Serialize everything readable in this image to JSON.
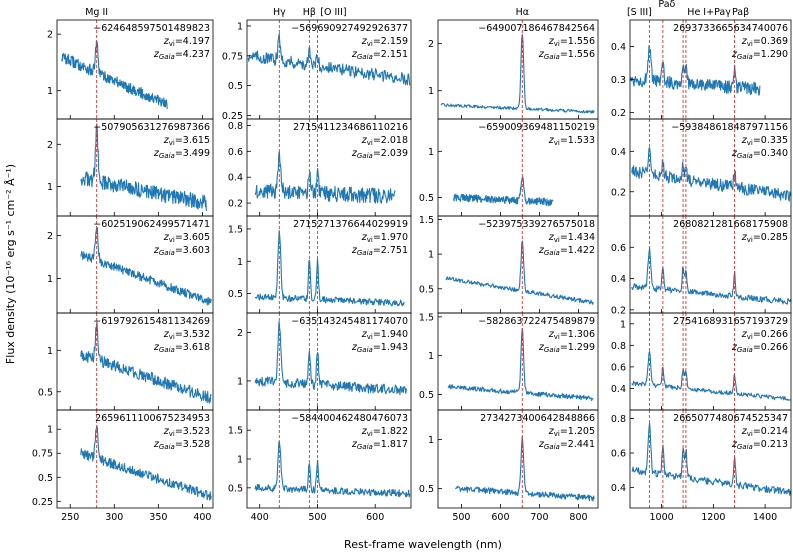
{
  "chart_data": {
    "type": "line",
    "xlabel": "Rest-frame wavelength (nm)",
    "ylabel": "Flux density (10⁻¹⁶ erg s⁻¹ cm⁻² Å⁻¹)",
    "series_color": "#1f77b4",
    "line_color": "#e03030",
    "columns": [
      {
        "xlim": [
          235,
          412
        ],
        "xticks": [
          250,
          300,
          350,
          400
        ],
        "lines": [
          {
            "name": "Mg II",
            "x": 280
          }
        ],
        "panels": [
          {
            "id": "−624648597501489823",
            "z_vi": "4.197",
            "z_gaia": "4.237",
            "ylim": [
              0.5,
              2.25
            ],
            "yticks": [
              1,
              2
            ],
            "x_range": [
              240,
              360
            ],
            "start": 1.6,
            "end": 0.75,
            "peak": 0.5,
            "noise": 0.1
          },
          {
            "id": "−507905631276987366",
            "z_vi": "3.615",
            "z_gaia": "3.499",
            "ylim": [
              0.3,
              2.6
            ],
            "yticks": [
              1,
              2
            ],
            "x_range": [
              262,
              405
            ],
            "start": 1.2,
            "end": 0.6,
            "peak": 1.2,
            "noise": 0.18
          },
          {
            "id": "−602519062499571471",
            "z_vi": "3.605",
            "z_gaia": "3.603",
            "ylim": [
              0.2,
              2.45
            ],
            "yticks": [
              1,
              2
            ],
            "x_range": [
              262,
              410
            ],
            "start": 1.55,
            "end": 0.45,
            "peak": 0.8,
            "noise": 0.1
          },
          {
            "id": "−619792615481134269",
            "z_vi": "3.532",
            "z_gaia": "3.618",
            "ylim": [
              0.28,
              1.45
            ],
            "yticks": [
              0.5,
              1.0
            ],
            "x_range": [
              262,
              410
            ],
            "start": 0.95,
            "end": 0.42,
            "peak": 0.4,
            "noise": 0.07
          },
          {
            "id": "265961110067523495​3",
            "z_vi": "3.523",
            "z_gaia": "3.528",
            "ylim": [
              0.18,
              1.2
            ],
            "yticks": [
              0.25,
              0.5,
              0.75,
              1.0
            ],
            "x_range": [
              262,
              410
            ],
            "start": 0.75,
            "end": 0.3,
            "peak": 0.35,
            "noise": 0.05
          }
        ]
      },
      {
        "xlim": [
          378,
          662
        ],
        "xticks": [
          400,
          500,
          600
        ],
        "lines": [
          {
            "name": "Hγ",
            "x": 434
          },
          {
            "name": "Hβ",
            "x": 486
          },
          {
            "name": "[O III]",
            "x": 500
          }
        ],
        "panels": [
          {
            "id": "−569690927492926377",
            "z_vi": "2.159",
            "z_gaia": "2.151",
            "ylim": [
              0.22,
              1.05
            ],
            "yticks": [
              0.25,
              0.5,
              0.75,
              1.0
            ],
            "x_range": [
              380,
              660
            ],
            "start": 0.75,
            "end": 0.55,
            "peak": 0.18,
            "noise": 0.05
          },
          {
            "id": "271541123468611021​6",
            "z_vi": "2.018",
            "z_gaia": "2.039",
            "ylim": [
              0.1,
              0.85
            ],
            "yticks": [
              0.2,
              0.4,
              0.6,
              0.8
            ],
            "x_range": [
              392,
              635
            ],
            "start": 0.3,
            "end": 0.25,
            "peak": 0.25,
            "noise": 0.06
          },
          {
            "id": "271527137664402991​9",
            "z_vi": "1.970",
            "z_gaia": "2.751",
            "ylim": [
              0.2,
              1.7
            ],
            "yticks": [
              0.5,
              1.0,
              1.5
            ],
            "x_range": [
              392,
              650
            ],
            "start": 0.45,
            "end": 0.35,
            "peak": 1.0,
            "noise": 0.05
          },
          {
            "id": "−635143245481174070",
            "z_vi": "1.940",
            "z_gaia": "1.943",
            "ylim": [
              0.4,
              2.4
            ],
            "yticks": [
              1,
              2
            ],
            "x_range": [
              392,
              655
            ],
            "start": 1.0,
            "end": 0.8,
            "peak": 1.2,
            "noise": 0.1
          },
          {
            "id": "−584400462480476073",
            "z_vi": "1.822",
            "z_gaia": "1.817",
            "ylim": [
              0.15,
              1.85
            ],
            "yticks": [
              0.5,
              1.0,
              1.5
            ],
            "x_range": [
              392,
              660
            ],
            "start": 0.5,
            "end": 0.4,
            "peak": 0.8,
            "noise": 0.06
          }
        ]
      },
      {
        "xlim": [
          440,
          850
        ],
        "xticks": [
          500,
          600,
          700,
          800
        ],
        "lines": [
          {
            "name": "Hα",
            "x": 656
          }
        ],
        "panels": [
          {
            "id": "−649007186467842564",
            "z_vi": "1.556",
            "z_gaia": "1.556",
            "ylim": [
              0.4,
              2.5
            ],
            "yticks": [
              1,
              2
            ],
            "x_range": [
              448,
              840
            ],
            "start": 0.7,
            "end": 0.55,
            "peak": 1.6,
            "noise": 0.03
          },
          {
            "id": "−659009369481150219",
            "z_vi": "1.533",
            "z_gaia": "",
            "ylim": [
              0.3,
              1.35
            ],
            "yticks": [
              0.5,
              1.0
            ],
            "x_range": [
              480,
              735
            ],
            "start": 0.5,
            "end": 0.45,
            "peak": 0.25,
            "noise": 0.04
          },
          {
            "id": "−523975339276575018",
            "z_vi": "1.434",
            "z_gaia": "1.422",
            "ylim": [
              0.15,
              1.55
            ],
            "yticks": [
              0.5,
              1.0,
              1.5
            ],
            "x_range": [
              460,
              838
            ],
            "start": 0.65,
            "end": 0.3,
            "peak": 0.7,
            "noise": 0.03
          },
          {
            "id": "−582863722475489879",
            "z_vi": "1.306",
            "z_gaia": "1.299",
            "ylim": [
              0.3,
              1.55
            ],
            "yticks": [
              0.5,
              1.0,
              1.5
            ],
            "x_range": [
              465,
              838
            ],
            "start": 0.6,
            "end": 0.45,
            "peak": 0.8,
            "noise": 0.03
          },
          {
            "id": "273427340064284886​6",
            "z_vi": "1.205",
            "z_gaia": "2.441",
            "ylim": [
              0.3,
              1.3
            ],
            "yticks": [
              0.5,
              1.0
            ],
            "x_range": [
              485,
              840
            ],
            "start": 0.5,
            "end": 0.4,
            "peak": 0.55,
            "noise": 0.03
          }
        ]
      },
      {
        "xlim": [
          878,
          1500
        ],
        "xticks": [
          1000,
          1200,
          1400
        ],
        "lines": [
          {
            "name": "[S III]",
            "x": 953
          },
          {
            "name": "Paδ",
            "x": 1005
          },
          {
            "name": "He I+Paγ",
            "x": 1083
          },
          {
            "name": "",
            "x": 1094
          },
          {
            "name": "Paβ",
            "x": 1282
          }
        ],
        "panels": [
          {
            "id": "269373366563474007​6",
            "z_vi": "0.369",
            "z_gaia": "1.290",
            "ylim": [
              0.18,
              0.48
            ],
            "yticks": [
              0.2,
              0.3,
              0.4
            ],
            "x_range": [
              880,
              1380
            ],
            "start": 0.3,
            "end": 0.27,
            "peak": 0.1,
            "noise": 0.02
          },
          {
            "id": "−593848618487971156",
            "z_vi": "0.335",
            "z_gaia": "0.340",
            "ylim": [
              0.08,
              0.56
            ],
            "yticks": [
              0.2,
              0.4
            ],
            "x_range": [
              885,
              1500
            ],
            "start": 0.3,
            "end": 0.18,
            "peak": 0.12,
            "noise": 0.03
          },
          {
            "id": "268082128166817590​8",
            "z_vi": "0.285",
            "z_gaia": "",
            "ylim": [
              0.18,
              0.8
            ],
            "yticks": [
              0.2,
              0.4,
              0.6
            ],
            "x_range": [
              885,
              1500
            ],
            "start": 0.35,
            "end": 0.25,
            "peak": 0.25,
            "noise": 0.02
          },
          {
            "id": "275416893165719372​9",
            "z_vi": "0.266",
            "z_gaia": "0.266",
            "ylim": [
              0.2,
              1.1
            ],
            "yticks": [
              0.4,
              0.6,
              0.8,
              1.0
            ],
            "x_range": [
              885,
              1500
            ],
            "start": 0.45,
            "end": 0.3,
            "peak": 0.3,
            "noise": 0.02
          },
          {
            "id": "266507748067452534​7",
            "z_vi": "0.214",
            "z_gaia": "0.213",
            "ylim": [
              0.28,
              0.85
            ],
            "yticks": [
              0.4,
              0.6,
              0.8
            ],
            "x_range": [
              885,
              1500
            ],
            "start": 0.5,
            "end": 0.37,
            "peak": 0.28,
            "noise": 0.02
          }
        ]
      }
    ]
  }
}
